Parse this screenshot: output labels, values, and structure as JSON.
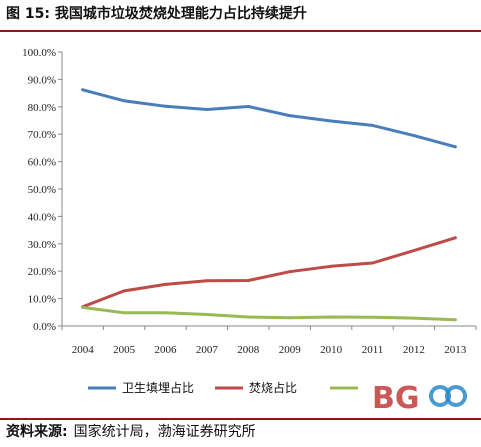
{
  "figure": {
    "title": "图 15:  我国城市垃圾焚烧处理能力占比持续提升",
    "source_label": "资料来源:",
    "source_text": "国家统计局，渤海证券研究所"
  },
  "colors": {
    "rule": "#8a1a1a",
    "series": [
      "#4a7ebb",
      "#be4b48",
      "#98b954"
    ]
  },
  "chart_data": {
    "type": "line",
    "title": "",
    "xlabel": "",
    "ylabel": "",
    "x": [
      "2004",
      "2005",
      "2006",
      "2007",
      "2008",
      "2009",
      "2010",
      "2011",
      "2012",
      "2013"
    ],
    "ylim": [
      0,
      100
    ],
    "y_ticks": [
      "0.0%",
      "10.0%",
      "20.0%",
      "30.0%",
      "40.0%",
      "50.0%",
      "60.0%",
      "70.0%",
      "80.0%",
      "90.0%",
      "100.0%"
    ],
    "grid": false,
    "legend_position": "bottom",
    "series": [
      {
        "name": "卫生填埋占比",
        "values": [
          86.2,
          82.2,
          80.2,
          79.0,
          80.1,
          76.8,
          74.8,
          73.2,
          69.5,
          65.4
        ]
      },
      {
        "name": "焚烧占比",
        "values": [
          7.0,
          12.8,
          15.2,
          16.5,
          16.6,
          19.8,
          21.8,
          23.0,
          27.5,
          32.2
        ]
      },
      {
        "name": "",
        "values": [
          6.8,
          4.8,
          4.8,
          4.2,
          3.3,
          3.0,
          3.3,
          3.2,
          2.9,
          2.3
        ]
      }
    ]
  }
}
